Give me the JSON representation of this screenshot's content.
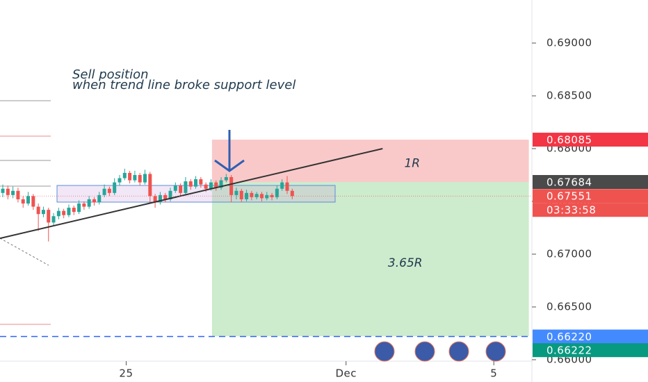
{
  "chart_data": {
    "type": "candlestick",
    "annotation": [
      "Sell position",
      "when trend line broke support level"
    ],
    "ylim": [
      0.65789,
      0.69408
    ],
    "yticks": [
      {
        "value": 0.69,
        "label": "0.69000"
      },
      {
        "value": 0.685,
        "label": "0.68500"
      },
      {
        "value": 0.68,
        "label": "0.68000"
      },
      {
        "value": 0.675,
        "label": "0.67500"
      },
      {
        "value": 0.67,
        "label": "0.67000"
      },
      {
        "value": 0.665,
        "label": "0.66500"
      },
      {
        "value": 0.66,
        "label": "0.66000"
      }
    ],
    "xlim": [
      -0.55,
      104.2
    ],
    "xticks": [
      {
        "value": 24.3,
        "label": "25"
      },
      {
        "value": 67.6,
        "label": "Dec"
      },
      {
        "value": 96.7,
        "label": "5"
      }
    ],
    "up_color": "#26a69a",
    "down_color": "#ef5350",
    "candles": [
      [
        0.6758,
        0.6766,
        0.6754,
        0.6762
      ],
      [
        0.6762,
        0.6765,
        0.6752,
        0.6756
      ],
      [
        0.6756,
        0.6764,
        0.6753,
        0.676
      ],
      [
        0.676,
        0.6763,
        0.6749,
        0.6752
      ],
      [
        0.6752,
        0.6755,
        0.6744,
        0.6748
      ],
      [
        0.6748,
        0.6759,
        0.6746,
        0.6755
      ],
      [
        0.6755,
        0.6757,
        0.6742,
        0.6745
      ],
      [
        0.6745,
        0.6748,
        0.6722,
        0.6738
      ],
      [
        0.6738,
        0.6745,
        0.6735,
        0.6742
      ],
      [
        0.6742,
        0.6744,
        0.6712,
        0.673
      ],
      [
        0.673,
        0.6739,
        0.6727,
        0.6736
      ],
      [
        0.6736,
        0.6744,
        0.6733,
        0.6741
      ],
      [
        0.6741,
        0.6743,
        0.6734,
        0.6737
      ],
      [
        0.6737,
        0.6747,
        0.6735,
        0.6744
      ],
      [
        0.6744,
        0.6746,
        0.6737,
        0.674
      ],
      [
        0.674,
        0.6751,
        0.6738,
        0.6748
      ],
      [
        0.6748,
        0.675,
        0.6742,
        0.6745
      ],
      [
        0.6745,
        0.6755,
        0.6743,
        0.6752
      ],
      [
        0.6752,
        0.6754,
        0.6746,
        0.6749
      ],
      [
        0.6749,
        0.6759,
        0.6747,
        0.6756
      ],
      [
        0.6756,
        0.6766,
        0.6754,
        0.6762
      ],
      [
        0.6762,
        0.6764,
        0.6755,
        0.6758
      ],
      [
        0.6758,
        0.6772,
        0.6756,
        0.6768
      ],
      [
        0.6768,
        0.6775,
        0.6765,
        0.6772
      ],
      [
        0.6772,
        0.6781,
        0.677,
        0.6777
      ],
      [
        0.6777,
        0.6779,
        0.6767,
        0.677
      ],
      [
        0.677,
        0.6779,
        0.6768,
        0.6775
      ],
      [
        0.6775,
        0.6777,
        0.6765,
        0.6768
      ],
      [
        0.6768,
        0.678,
        0.6766,
        0.6776
      ],
      [
        0.6776,
        0.6778,
        0.6748,
        0.6755
      ],
      [
        0.6755,
        0.6757,
        0.6744,
        0.6749
      ],
      [
        0.6749,
        0.6759,
        0.6747,
        0.6756
      ],
      [
        0.6756,
        0.6758,
        0.6749,
        0.6752
      ],
      [
        0.6752,
        0.6763,
        0.675,
        0.676
      ],
      [
        0.676,
        0.6768,
        0.6758,
        0.6765
      ],
      [
        0.6765,
        0.6767,
        0.6755,
        0.6758
      ],
      [
        0.6758,
        0.6773,
        0.6756,
        0.6769
      ],
      [
        0.6769,
        0.6771,
        0.6761,
        0.6764
      ],
      [
        0.6764,
        0.6774,
        0.6762,
        0.6771
      ],
      [
        0.6771,
        0.6773,
        0.6763,
        0.6766
      ],
      [
        0.6766,
        0.6768,
        0.6759,
        0.6762
      ],
      [
        0.6762,
        0.6771,
        0.676,
        0.6768
      ],
      [
        0.6768,
        0.677,
        0.676,
        0.6763
      ],
      [
        0.6763,
        0.6773,
        0.6761,
        0.677
      ],
      [
        0.677,
        0.6776,
        0.6768,
        0.6773
      ],
      [
        0.6773,
        0.6775,
        0.6749,
        0.6756
      ],
      [
        0.6756,
        0.6763,
        0.6752,
        0.676
      ],
      [
        0.676,
        0.6762,
        0.6749,
        0.6752
      ],
      [
        0.6752,
        0.6761,
        0.675,
        0.6758
      ],
      [
        0.6758,
        0.676,
        0.6751,
        0.6754
      ],
      [
        0.6754,
        0.6759,
        0.6752,
        0.6757
      ],
      [
        0.6757,
        0.6759,
        0.675,
        0.6753
      ],
      [
        0.6753,
        0.6759,
        0.6751,
        0.6756
      ],
      [
        0.6756,
        0.6758,
        0.6751,
        0.6754
      ],
      [
        0.6754,
        0.6765,
        0.6752,
        0.6762
      ],
      [
        0.6762,
        0.6771,
        0.676,
        0.6768
      ],
      [
        0.6768,
        0.6774,
        0.6757,
        0.676
      ],
      [
        0.676,
        0.6762,
        0.6752,
        0.6755
      ]
    ],
    "trend_line": {
      "x": [
        -0.55,
        74.8
      ],
      "y": [
        0.6715,
        0.68
      ]
    },
    "position": {
      "x": [
        41.2,
        103.6
      ],
      "entry": 0.67684,
      "stop": 0.68085,
      "target": 0.66222,
      "risk_label": "1R",
      "reward_label": "3.65R",
      "risk_color": "#f9c9c9",
      "reward_color": "#cdebcd"
    },
    "target_line": {
      "value": 0.6622,
      "color": "#2962ff"
    },
    "price_tags": [
      {
        "value": 0.68085,
        "label": "0.68085",
        "color": "#f23645"
      },
      {
        "value": 0.67684,
        "label": "0.67684",
        "color": "#4a4a4a"
      },
      {
        "value": 0.67551,
        "label": "0.67551",
        "color": "#ef5350",
        "countdown": "03:33:58"
      },
      {
        "value": 0.6622,
        "label": "0.66220",
        "color": "#448aff"
      },
      {
        "value": 0.66222,
        "label": "0.66222",
        "color": "#089981"
      }
    ]
  }
}
